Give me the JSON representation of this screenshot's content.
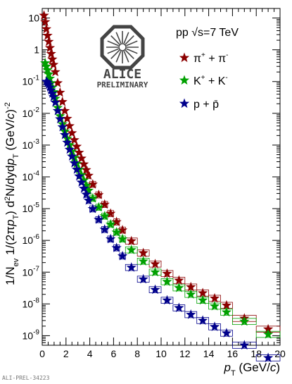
{
  "chart_data": {
    "type": "scatter",
    "yscale": "log",
    "xlim": [
      0,
      20
    ],
    "ylim": [
      5e-10,
      20
    ],
    "x_ticks": [
      0,
      2,
      4,
      6,
      8,
      10,
      12,
      14,
      16,
      18,
      20
    ],
    "y_ticks": [
      {
        "value": 10,
        "base": "10",
        "exp": ""
      },
      {
        "value": 1,
        "base": "1",
        "exp": ""
      },
      {
        "value": 0.1,
        "base": "10",
        "exp": "-1"
      },
      {
        "value": 0.01,
        "base": "10",
        "exp": "-2"
      },
      {
        "value": 0.001,
        "base": "10",
        "exp": "-3"
      },
      {
        "value": 0.0001,
        "base": "10",
        "exp": "-4"
      },
      {
        "value": 1e-05,
        "base": "10",
        "exp": "-5"
      },
      {
        "value": 1e-06,
        "base": "10",
        "exp": "-6"
      },
      {
        "value": 1e-07,
        "base": "10",
        "exp": "-7"
      },
      {
        "value": 1e-08,
        "base": "10",
        "exp": "-8"
      },
      {
        "value": 1e-09,
        "base": "10",
        "exp": "-9"
      }
    ],
    "xlabel": {
      "main": "p",
      "sub": "T",
      "rest": " (GeV/",
      "italic": "c",
      "end": ")"
    },
    "ylabel": "1/N_ev 1/(2πp_T) d²N/dydp_T (GeV/c)^-2",
    "energy_label": "pp √s=7 TeV",
    "series": [
      {
        "name": "π⁺ + π⁻",
        "color": "#8b0000",
        "x": [
          0.15,
          0.25,
          0.35,
          0.45,
          0.55,
          0.65,
          0.75,
          0.85,
          0.95,
          1.1,
          1.3,
          1.5,
          1.7,
          1.9,
          2.1,
          2.3,
          2.5,
          2.7,
          2.9,
          3.1,
          3.3,
          3.5,
          3.7,
          3.9,
          4.25,
          4.75,
          5.25,
          5.75,
          6.25,
          6.75,
          7.5,
          8.5,
          9.5,
          10.5,
          11.5,
          12.5,
          13.5,
          14.5,
          15.5,
          17.0,
          19.0
        ],
        "values": [
          12,
          7.5,
          4.5,
          2.8,
          1.8,
          1.15,
          0.75,
          0.5,
          0.34,
          0.2,
          0.09,
          0.045,
          0.023,
          0.012,
          0.0068,
          0.004,
          0.0024,
          0.00145,
          0.0009,
          0.00058,
          0.00038,
          0.00025,
          0.000165,
          0.00011,
          5.8e-05,
          2.7e-05,
          1.35e-05,
          7e-06,
          3.8e-06,
          2.1e-06,
          9.5e-07,
          4e-07,
          1.8e-07,
          9e-08,
          5.5e-08,
          3.4e-08,
          2.2e-08,
          1.5e-08,
          9e-09,
          3.5e-09,
          1.6e-09
        ]
      },
      {
        "name": "K⁺ + K⁻",
        "color": "#00a000",
        "x": [
          0.25,
          0.35,
          0.45,
          0.55,
          0.65,
          0.75,
          0.85,
          0.95,
          1.1,
          1.3,
          1.5,
          1.7,
          1.9,
          2.1,
          2.3,
          2.5,
          2.7,
          2.9,
          3.1,
          3.3,
          3.5,
          3.7,
          3.9,
          4.25,
          4.75,
          5.25,
          5.75,
          6.25,
          6.75,
          7.5,
          8.5,
          9.5,
          10.5,
          11.5,
          12.5,
          13.5,
          14.5,
          15.5,
          17.0,
          19.0
        ],
        "values": [
          0.38,
          0.3,
          0.23,
          0.17,
          0.125,
          0.09,
          0.065,
          0.047,
          0.029,
          0.015,
          0.0082,
          0.0046,
          0.0027,
          0.0016,
          0.001,
          0.00063,
          0.0004,
          0.00026,
          0.00017,
          0.000115,
          7.8e-05,
          5.3e-05,
          3.7e-05,
          2.1e-05,
          1.1e-05,
          5.8e-06,
          3.2e-06,
          1.8e-06,
          1.1e-06,
          5e-07,
          2.2e-07,
          1e-07,
          5e-08,
          3.2e-08,
          2e-08,
          1.3e-08,
          8.5e-09,
          5.5e-09,
          2.8e-09,
          1.1e-09
        ]
      },
      {
        "name": "p + p̄",
        "color": "#00008b",
        "x": [
          0.35,
          0.45,
          0.55,
          0.65,
          0.75,
          0.85,
          0.95,
          1.1,
          1.3,
          1.5,
          1.7,
          1.9,
          2.1,
          2.3,
          2.5,
          2.7,
          2.9,
          3.1,
          3.3,
          3.5,
          3.7,
          3.9,
          4.25,
          4.75,
          5.25,
          5.75,
          6.25,
          6.75,
          7.5,
          8.5,
          9.5,
          10.5,
          11.5,
          12.5,
          13.5,
          14.5,
          15.5,
          17.0,
          19.0
        ],
        "values": [
          0.1,
          0.092,
          0.08,
          0.066,
          0.053,
          0.042,
          0.033,
          0.022,
          0.012,
          0.0066,
          0.0037,
          0.0021,
          0.0012,
          0.00072,
          0.00044,
          0.00027,
          0.00017,
          0.000105,
          6.7e-05,
          4.3e-05,
          2.8e-05,
          1.8e-05,
          9.8e-06,
          4.5e-06,
          2.2e-06,
          1.1e-06,
          5.8e-07,
          3.2e-07,
          1.4e-07,
          6e-08,
          2.8e-08,
          1.3e-08,
          7.5e-09,
          4.6e-09,
          3e-09,
          1.9e-09,
          1.2e-09,
          5e-10,
          2e-10
        ]
      }
    ]
  },
  "logo": {
    "name": "ALICE",
    "subtitle": "PRELIMINARY"
  },
  "footnote": "ALI-PREL-34223"
}
